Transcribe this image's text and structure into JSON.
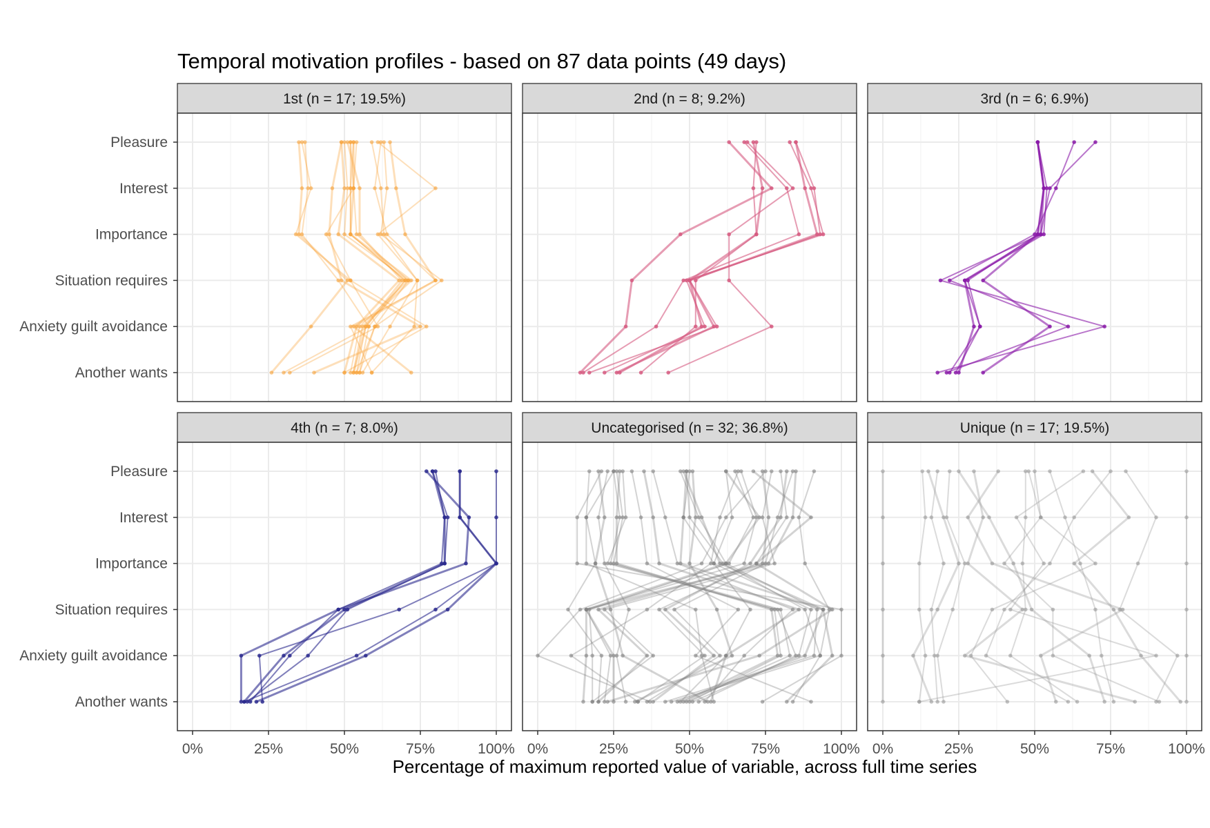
{
  "chart_data": {
    "type": "line",
    "title": "Temporal motivation profiles - based on 87 data points (49 days)",
    "xlabel": "Percentage of maximum reported value of variable, across full time series",
    "ylabel": "",
    "xlim": [
      0,
      100
    ],
    "x_tick_labels": [
      "0%",
      "25%",
      "50%",
      "75%",
      "100%"
    ],
    "y_categories": [
      "Pleasure",
      "Interest",
      "Importance",
      "Situation requires",
      "Anxiety guilt avoidance",
      "Another wants"
    ],
    "grid": true,
    "layout": "2 rows x 3 columns facets",
    "panels": [
      {
        "label": "1st (n = 17; 19.5%)",
        "color": "#F9A33A",
        "profiles": [
          [
            53,
            53,
            52,
            72,
            56,
            53
          ],
          [
            52,
            52,
            52,
            70,
            58,
            55
          ],
          [
            54,
            53,
            54,
            71,
            60,
            54
          ],
          [
            51,
            55,
            55,
            69,
            57,
            53
          ],
          [
            53,
            52,
            52,
            70,
            57,
            54
          ],
          [
            50,
            51,
            50,
            71,
            55,
            52
          ],
          [
            49,
            50,
            48,
            68,
            54,
            50
          ],
          [
            36,
            39,
            34,
            52,
            61,
            32
          ],
          [
            37,
            38,
            36,
            48,
            58,
            30
          ],
          [
            35,
            36,
            35,
            51,
            39,
            26
          ],
          [
            63,
            64,
            62,
            82,
            60,
            55
          ],
          [
            62,
            60,
            64,
            80,
            52,
            59
          ],
          [
            65,
            67,
            70,
            80,
            53,
            72
          ],
          [
            59,
            62,
            63,
            74,
            73,
            59
          ],
          [
            61,
            80,
            61,
            74,
            65,
            56
          ],
          [
            49,
            46,
            45,
            49,
            75,
            40
          ],
          [
            52,
            53,
            44,
            52,
            77,
            50
          ]
        ]
      },
      {
        "label": "2nd (n = 8; 9.2%)",
        "color": "#D65A80",
        "profiles": [
          [
            85,
            88,
            92,
            50,
            54,
            27
          ],
          [
            83,
            90,
            94,
            49,
            55,
            22
          ],
          [
            85,
            91,
            93,
            50,
            59,
            17
          ],
          [
            71,
            74,
            72,
            50,
            58,
            26
          ],
          [
            72,
            71,
            72,
            52,
            52,
            34
          ],
          [
            68,
            82,
            86,
            48,
            39,
            15
          ],
          [
            63,
            77,
            47,
            31,
            29,
            14
          ],
          [
            69,
            84,
            63,
            63,
            77,
            43
          ]
        ]
      },
      {
        "label": "3rd (n = 6; 6.9%)",
        "color": "#8A1BA8",
        "profiles": [
          [
            51,
            53,
            52,
            27,
            30,
            25
          ],
          [
            51,
            53,
            51,
            28,
            32,
            24
          ],
          [
            51,
            54,
            53,
            27,
            32,
            22
          ],
          [
            51,
            53,
            51,
            33,
            55,
            33
          ],
          [
            63,
            57,
            50,
            22,
            61,
            21
          ],
          [
            70,
            55,
            52,
            19,
            73,
            18
          ]
        ]
      },
      {
        "label": "4th (n = 7; 8.0%)",
        "color": "#2B2A8E",
        "profiles": [
          [
            79,
            83,
            83,
            50,
            30,
            17
          ],
          [
            80,
            83,
            82,
            48,
            32,
            19
          ],
          [
            79,
            84,
            83,
            51,
            38,
            18
          ],
          [
            77,
            91,
            90,
            48,
            16,
            16
          ],
          [
            88,
            88,
            100,
            68,
            22,
            23
          ],
          [
            100,
            100,
            100,
            80,
            54,
            17
          ],
          [
            88,
            88,
            100,
            84,
            57,
            21
          ]
        ]
      },
      {
        "label": "Uncategorised (n = 32; 36.8%)",
        "color": "#808080",
        "profiles": [
          [
            62,
            73,
            62,
            16,
            16,
            15
          ],
          [
            65,
            71,
            63,
            17,
            18,
            18
          ],
          [
            67,
            72,
            68,
            16,
            24,
            22
          ],
          [
            85,
            84,
            76,
            16,
            25,
            25
          ],
          [
            25,
            27,
            24,
            78,
            80,
            50
          ],
          [
            26,
            28,
            25,
            80,
            83,
            49
          ],
          [
            27,
            26,
            26,
            77,
            79,
            48
          ],
          [
            28,
            29,
            23,
            79,
            85,
            53
          ],
          [
            47,
            53,
            62,
            92,
            91,
            42
          ],
          [
            48,
            54,
            60,
            94,
            88,
            46
          ],
          [
            49,
            50,
            61,
            88,
            93,
            44
          ],
          [
            50,
            48,
            58,
            90,
            86,
            51
          ],
          [
            35,
            38,
            40,
            86,
            62,
            57
          ],
          [
            38,
            42,
            46,
            84,
            68,
            55
          ],
          [
            80,
            82,
            72,
            40,
            55,
            33
          ],
          [
            82,
            80,
            70,
            42,
            58,
            38
          ],
          [
            84,
            79,
            75,
            45,
            60,
            36
          ],
          [
            77,
            74,
            78,
            22,
            38,
            18
          ],
          [
            74,
            76,
            74,
            20,
            36,
            20
          ],
          [
            21,
            13,
            13,
            100,
            100,
            74
          ],
          [
            31,
            34,
            36,
            66,
            52,
            90
          ],
          [
            20,
            22,
            19,
            24,
            28,
            56
          ],
          [
            17,
            16,
            16,
            52,
            54,
            58
          ],
          [
            23,
            20,
            22,
            30,
            26,
            29
          ],
          [
            71,
            90,
            72,
            97,
            73,
            23
          ],
          [
            62,
            64,
            58,
            70,
            62,
            47
          ],
          [
            91,
            86,
            88,
            96,
            93,
            84
          ],
          [
            49,
            48,
            47,
            94,
            97,
            82
          ],
          [
            75,
            62,
            54,
            14,
            0,
            37
          ],
          [
            66,
            60,
            57,
            36,
            11,
            33
          ],
          [
            51,
            52,
            50,
            59,
            64,
            32
          ],
          [
            25,
            16,
            19,
            10,
            21,
            20
          ]
        ]
      },
      {
        "label": "Unique (n = 17; 19.5%)",
        "color": "#999999",
        "profiles": [
          [
            0,
            0,
            0,
            0,
            0,
            0
          ],
          [
            100,
            100,
            100,
            100,
            100,
            100
          ],
          [
            13,
            14,
            12,
            12,
            14,
            12
          ],
          [
            15,
            20,
            25,
            18,
            10,
            16
          ],
          [
            18,
            16,
            20,
            16,
            17,
            18
          ],
          [
            22,
            21,
            27,
            23,
            18,
            20
          ],
          [
            30,
            33,
            28,
            46,
            27,
            83
          ],
          [
            47,
            47,
            46,
            47,
            42,
            64
          ],
          [
            50,
            52,
            40,
            56,
            56,
            91
          ],
          [
            69,
            81,
            63,
            76,
            85,
            98
          ],
          [
            80,
            90,
            84,
            78,
            97,
            90
          ],
          [
            55,
            60,
            65,
            70,
            72,
            76
          ],
          [
            25,
            35,
            43,
            49,
            68,
            73
          ],
          [
            75,
            63,
            55,
            40,
            34,
            61
          ],
          [
            48,
            52,
            70,
            36,
            29,
            41
          ],
          [
            38,
            28,
            36,
            79,
            52,
            57
          ],
          [
            66,
            44,
            53,
            42,
            90,
            12
          ]
        ]
      }
    ]
  }
}
